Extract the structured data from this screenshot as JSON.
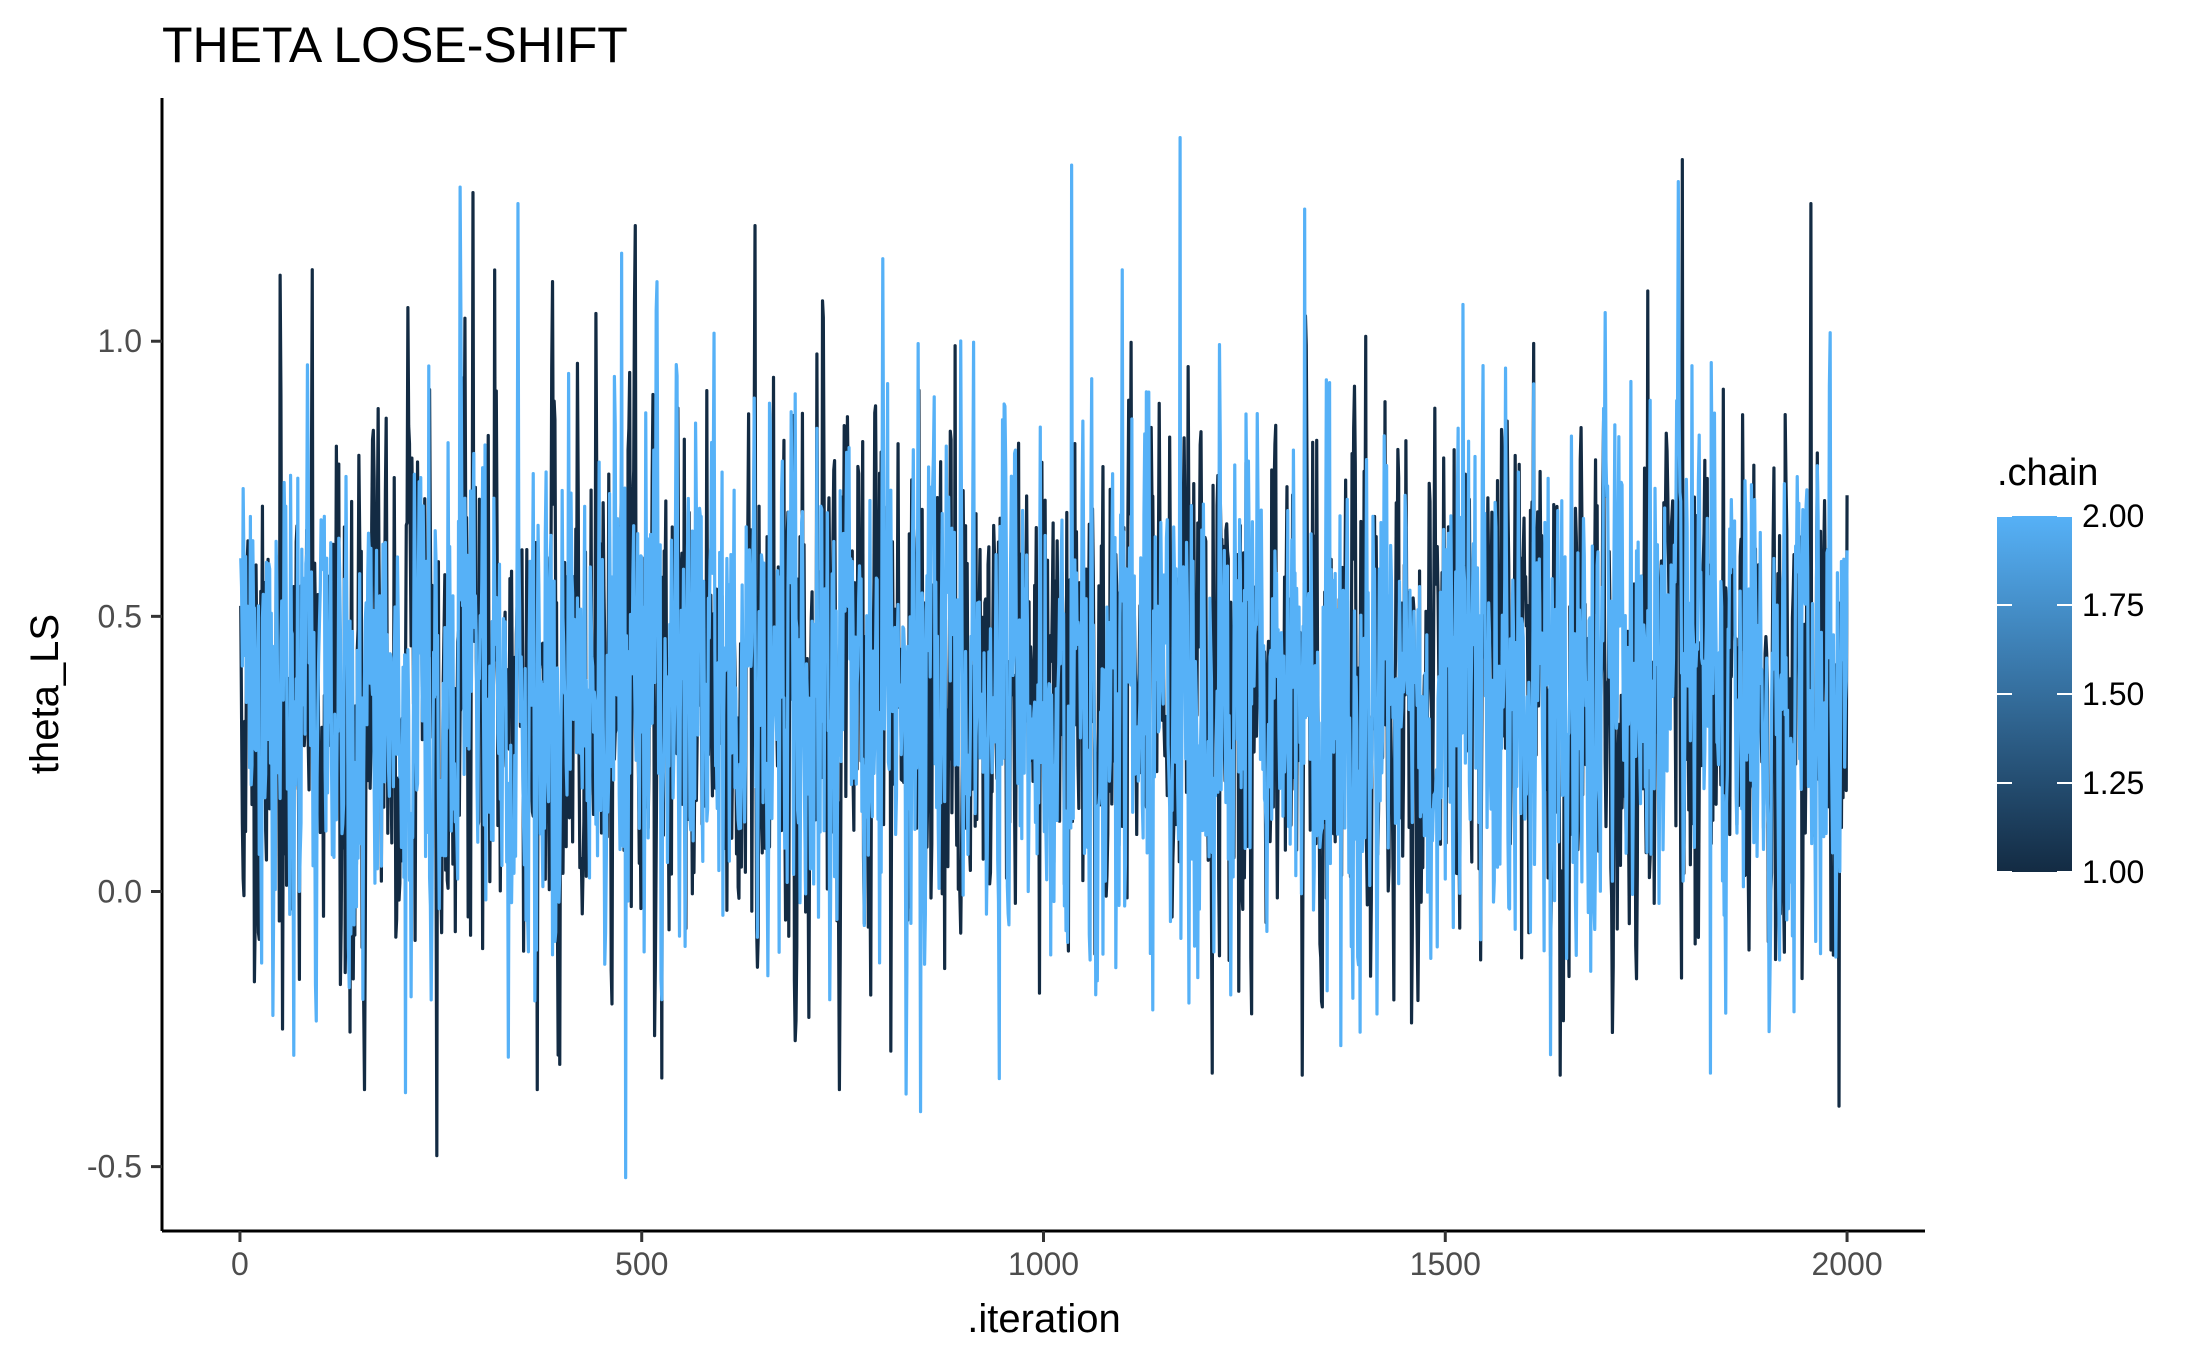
{
  "chart_data": {
    "type": "line",
    "title": "THETA LOSE-SHIFT",
    "xlabel": ".iteration",
    "ylabel": "theta_LS",
    "xlim": [
      -97,
      2097
    ],
    "ylim": [
      -0.617,
      1.442
    ],
    "x_ticks": [
      0,
      500,
      1000,
      1500,
      2000
    ],
    "x_tick_labels": [
      "0",
      "500",
      "1000",
      "1500",
      "2000"
    ],
    "y_ticks": [
      -0.5,
      0.0,
      0.5,
      1.0
    ],
    "y_tick_labels": [
      "-0.5",
      "0.0",
      "0.5",
      "1.0"
    ],
    "grid": false,
    "legend": {
      "title": ".chain",
      "type": "colorbar",
      "position": "right",
      "range": [
        1.0,
        2.0
      ],
      "ticks": [
        1.0,
        1.25,
        1.5,
        1.75,
        2.0
      ],
      "tick_labels": [
        "1.00",
        "1.25",
        "1.50",
        "1.75",
        "2.00"
      ],
      "low_color": "#132b43",
      "high_color": "#56b1f7"
    },
    "series": [
      {
        "chain": 1,
        "color": "#132b43",
        "iterations": [
          1,
          2000
        ],
        "value_range_approx": [
          -0.48,
          1.33
        ],
        "mean_approx": 0.36,
        "key_points": [
          {
            "x": 50,
            "y": 1.12
          },
          {
            "x": 53,
            "y": -0.25
          },
          {
            "x": 90,
            "y": 1.13
          },
          {
            "x": 245,
            "y": -0.48
          },
          {
            "x": 290,
            "y": 1.27
          },
          {
            "x": 370,
            "y": -0.36
          },
          {
            "x": 810,
            "y": -0.29
          },
          {
            "x": 1210,
            "y": -0.33
          },
          {
            "x": 1795,
            "y": 1.33
          },
          {
            "x": 1955,
            "y": 1.25
          },
          {
            "x": 1990,
            "y": -0.39
          },
          {
            "x": 2000,
            "y": 0.72
          }
        ]
      },
      {
        "chain": 2,
        "color": "#56b1f7",
        "iterations": [
          1,
          2000
        ],
        "value_range_approx": [
          -0.52,
          1.37
        ],
        "mean_approx": 0.36,
        "key_points": [
          {
            "x": 27,
            "y": -0.13
          },
          {
            "x": 274,
            "y": 1.28
          },
          {
            "x": 475,
            "y": 1.16
          },
          {
            "x": 480,
            "y": -0.52
          },
          {
            "x": 945,
            "y": -0.34
          },
          {
            "x": 1035,
            "y": 1.32
          },
          {
            "x": 1170,
            "y": 1.37
          },
          {
            "x": 1325,
            "y": 1.24
          },
          {
            "x": 1370,
            "y": -0.28
          },
          {
            "x": 1790,
            "y": 1.29
          },
          {
            "x": 1830,
            "y": -0.33
          },
          {
            "x": 2000,
            "y": 0.62
          }
        ]
      }
    ]
  }
}
